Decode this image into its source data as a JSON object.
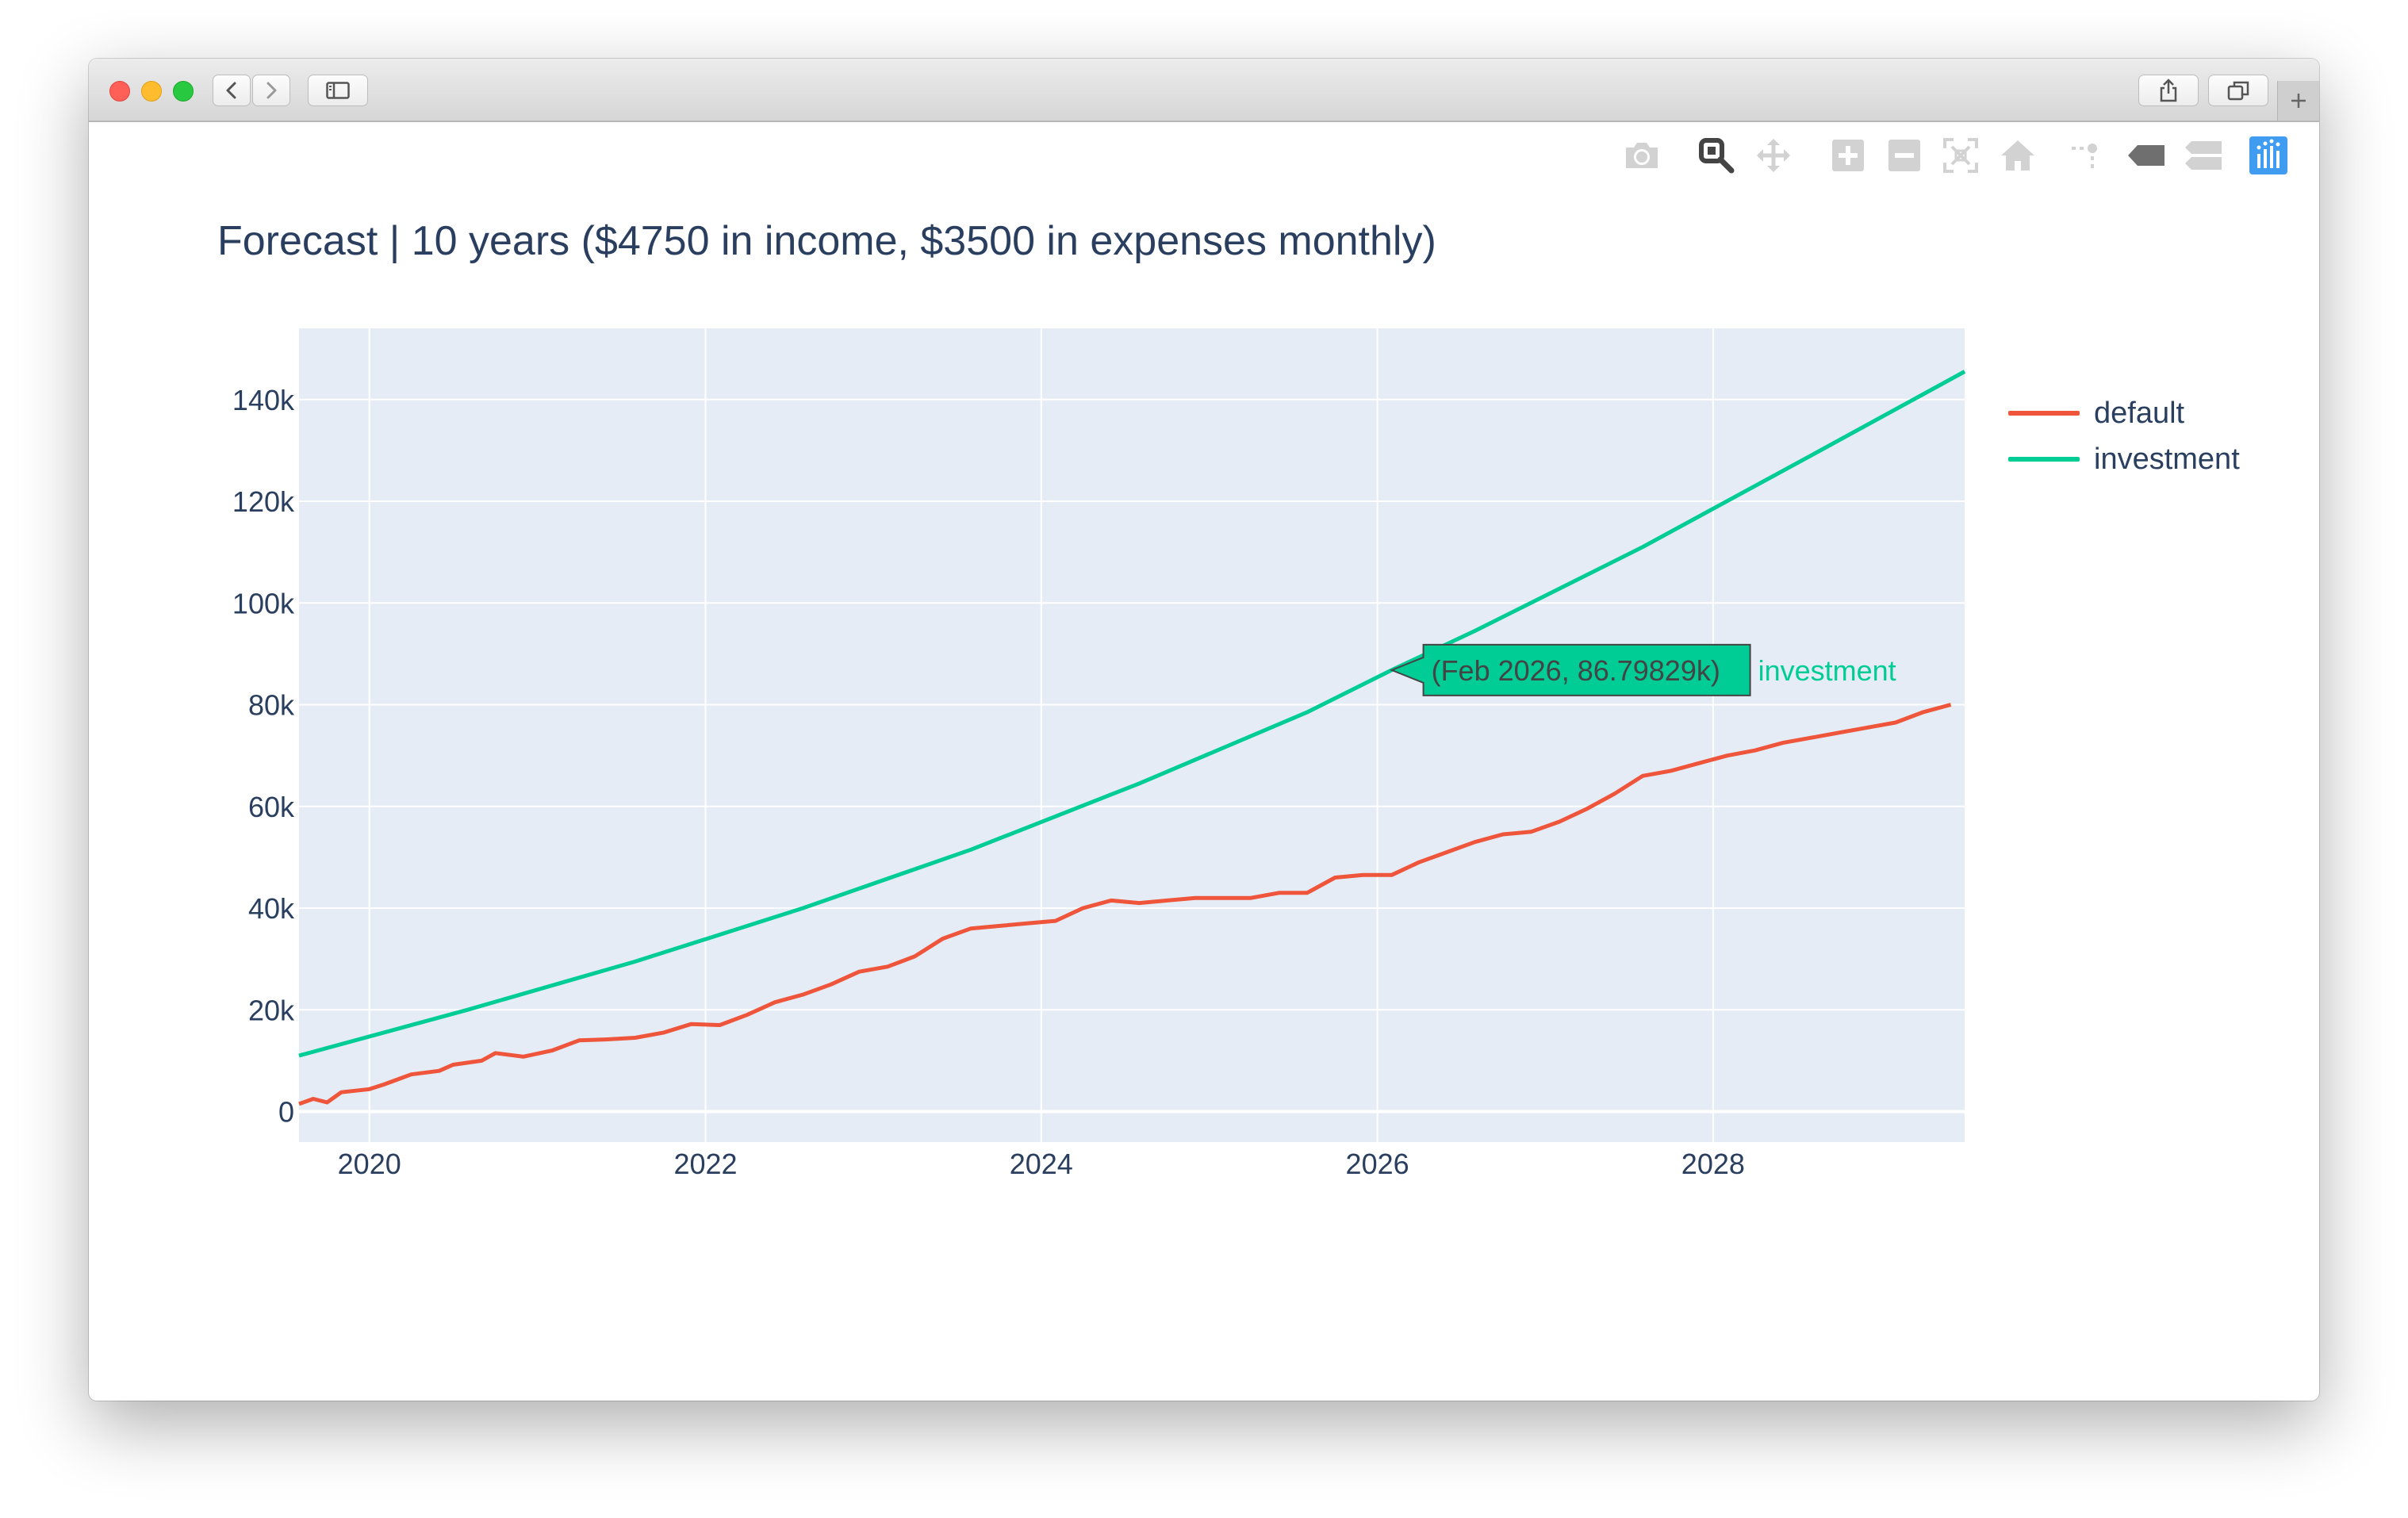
{
  "window": {
    "toolbar_icons": [
      "chevron-left-icon",
      "chevron-right-icon",
      "sidebar-icon",
      "share-icon",
      "tabs-icon",
      "plus-icon"
    ]
  },
  "modebar": {
    "icons": [
      "camera-icon",
      "zoom-icon",
      "pan-icon",
      "zoom-in-icon",
      "zoom-out-icon",
      "autoscale-icon",
      "reset-axes-icon",
      "spike-lines-icon",
      "hover-closest-icon",
      "hover-compare-icon",
      "plotly-logo-icon"
    ],
    "active": "zoom-icon",
    "colors": {
      "inactive": "#d2d2d2",
      "active": "#444444",
      "dark": "#6f6f6f",
      "logo": "#3f9cf1"
    }
  },
  "chart_data": {
    "type": "line",
    "title": "Forecast | 10 years ($4750 in income, $3500 in expenses monthly)",
    "xlabel": "",
    "ylabel": "",
    "x_type": "date",
    "xlim": [
      "2019-08-01",
      "2029-07-01"
    ],
    "ylim": [
      -6000,
      154000
    ],
    "x_ticks": [
      "2020",
      "2022",
      "2024",
      "2026",
      "2028"
    ],
    "y_ticks": [
      "0",
      "20k",
      "40k",
      "60k",
      "80k",
      "100k",
      "120k",
      "140k"
    ],
    "y_tick_values": [
      0,
      20000,
      40000,
      60000,
      80000,
      100000,
      120000,
      140000
    ],
    "grid": true,
    "legend_position": "top-right",
    "plot_background": "#e5ecf6",
    "series": [
      {
        "name": "default",
        "color": "#ef553b",
        "points": [
          [
            "2019-08-01",
            1500
          ],
          [
            "2019-09-01",
            2500
          ],
          [
            "2019-10-01",
            1800
          ],
          [
            "2019-11-01",
            3800
          ],
          [
            "2020-01-01",
            4400
          ],
          [
            "2020-02-01",
            5300
          ],
          [
            "2020-04-01",
            7300
          ],
          [
            "2020-06-01",
            8000
          ],
          [
            "2020-07-01",
            9200
          ],
          [
            "2020-09-01",
            10000
          ],
          [
            "2020-10-01",
            11500
          ],
          [
            "2020-12-01",
            10800
          ],
          [
            "2021-02-01",
            12000
          ],
          [
            "2021-04-01",
            14000
          ],
          [
            "2021-06-01",
            14200
          ],
          [
            "2021-08-01",
            14500
          ],
          [
            "2021-10-01",
            15500
          ],
          [
            "2021-12-01",
            17200
          ],
          [
            "2022-02-01",
            17000
          ],
          [
            "2022-04-01",
            19000
          ],
          [
            "2022-06-01",
            21500
          ],
          [
            "2022-08-01",
            23000
          ],
          [
            "2022-10-01",
            25000
          ],
          [
            "2022-12-01",
            27500
          ],
          [
            "2023-02-01",
            28500
          ],
          [
            "2023-04-01",
            30500
          ],
          [
            "2023-06-01",
            34000
          ],
          [
            "2023-08-01",
            36000
          ],
          [
            "2023-10-01",
            36500
          ],
          [
            "2023-12-01",
            37000
          ],
          [
            "2024-02-01",
            37500
          ],
          [
            "2024-04-01",
            40000
          ],
          [
            "2024-06-01",
            41500
          ],
          [
            "2024-08-01",
            41000
          ],
          [
            "2024-10-01",
            41500
          ],
          [
            "2024-12-01",
            42000
          ],
          [
            "2025-02-01",
            42000
          ],
          [
            "2025-04-01",
            42000
          ],
          [
            "2025-06-01",
            43000
          ],
          [
            "2025-08-01",
            43000
          ],
          [
            "2025-10-01",
            46000
          ],
          [
            "2025-12-01",
            46500
          ],
          [
            "2026-02-01",
            46500
          ],
          [
            "2026-04-01",
            49000
          ],
          [
            "2026-06-01",
            51000
          ],
          [
            "2026-08-01",
            53000
          ],
          [
            "2026-10-01",
            54500
          ],
          [
            "2026-12-01",
            55000
          ],
          [
            "2027-02-01",
            57000
          ],
          [
            "2027-04-01",
            59500
          ],
          [
            "2027-06-01",
            62500
          ],
          [
            "2027-08-01",
            66000
          ],
          [
            "2027-10-01",
            67000
          ],
          [
            "2027-12-01",
            68500
          ],
          [
            "2028-02-01",
            70000
          ],
          [
            "2028-04-01",
            71000
          ],
          [
            "2028-06-01",
            72500
          ],
          [
            "2028-08-01",
            73500
          ],
          [
            "2028-10-01",
            74500
          ],
          [
            "2028-12-01",
            75500
          ],
          [
            "2029-02-01",
            76500
          ],
          [
            "2029-04-01",
            78500
          ],
          [
            "2029-06-01",
            80000
          ]
        ]
      },
      {
        "name": "investment",
        "color": "#00cc96",
        "points": [
          [
            "2019-08-01",
            11000
          ],
          [
            "2020-08-01",
            20000
          ],
          [
            "2021-08-01",
            29500
          ],
          [
            "2022-08-01",
            40000
          ],
          [
            "2023-08-01",
            51500
          ],
          [
            "2024-08-01",
            64500
          ],
          [
            "2025-08-01",
            78500
          ],
          [
            "2026-02-01",
            86798
          ],
          [
            "2026-08-01",
            94500
          ],
          [
            "2027-08-01",
            111000
          ],
          [
            "2028-08-01",
            129000
          ],
          [
            "2029-07-01",
            145500
          ]
        ]
      }
    ],
    "hover": {
      "series": "investment",
      "x": "2026-02-01",
      "y": 86798.29,
      "label": "(Feb 2026, 86.79829k)",
      "name": "investment"
    }
  }
}
